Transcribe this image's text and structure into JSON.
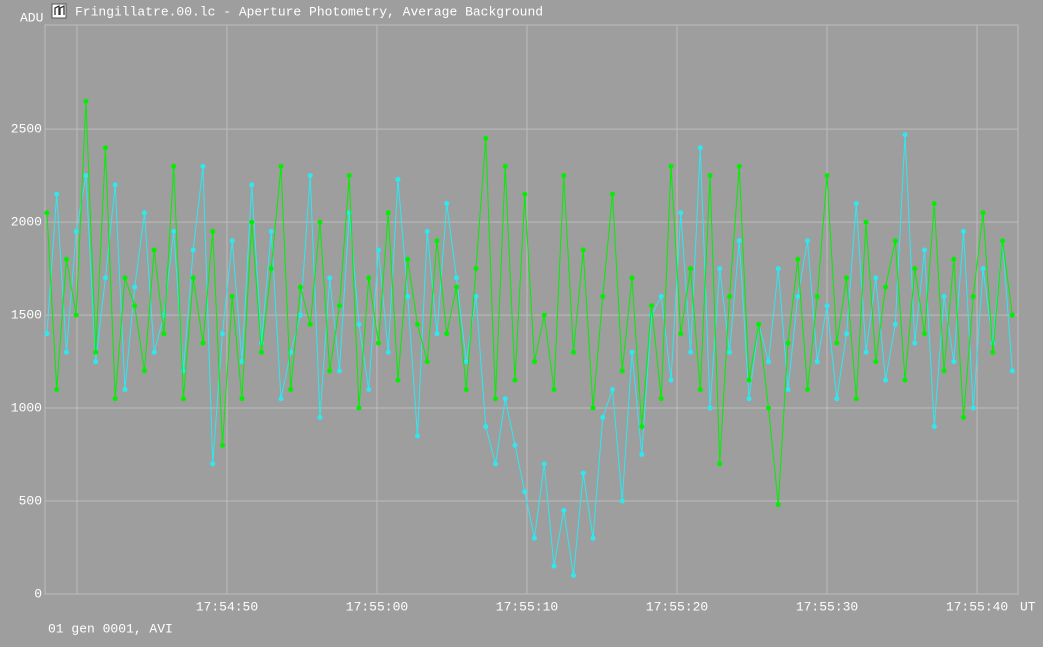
{
  "chart_data": {
    "type": "line",
    "title": "Fringillatre.00.lc - Aperture Photometry, Average Background",
    "y_label": "ADU",
    "x_label": "UT",
    "footer": "01 gen 0001, AVI",
    "x": [
      38.0,
      38.65,
      39.3,
      39.95,
      40.6,
      41.25,
      41.9,
      42.55,
      43.2,
      43.85,
      44.5,
      45.15,
      45.8,
      46.45,
      47.1,
      47.75,
      48.4,
      49.05,
      49.7,
      50.35,
      51.0,
      51.65,
      52.3,
      52.95,
      53.6,
      54.25,
      54.9,
      55.55,
      56.2,
      56.85,
      57.5,
      58.15,
      58.8,
      59.45,
      60.1,
      60.75,
      61.4,
      62.05,
      62.7,
      63.35,
      64.0,
      64.65,
      65.3,
      65.95,
      66.6,
      67.25,
      67.9,
      68.55,
      69.2,
      69.85,
      70.5,
      71.15,
      71.8,
      72.45,
      73.1,
      73.75,
      74.4,
      75.05,
      75.7,
      76.35,
      77.0,
      77.65,
      78.3,
      78.95,
      79.6,
      80.25,
      80.9,
      81.55,
      82.2,
      82.85,
      83.5,
      84.15,
      84.8,
      85.45,
      86.1,
      86.75,
      87.4,
      88.05,
      88.7,
      89.35,
      90.0,
      90.65,
      91.3,
      91.95,
      92.6,
      93.25,
      93.9,
      94.55,
      95.2,
      95.85,
      96.5,
      97.15,
      97.8,
      98.45,
      99.1,
      99.75,
      100.4,
      101.05,
      101.7,
      102.35
    ],
    "series": [
      {
        "color": "#2ee8f0",
        "values": [
          1400,
          2150,
          1300,
          1950,
          2250,
          1250,
          1700,
          2200,
          1100,
          1650,
          2050,
          1300,
          1500,
          1950,
          1200,
          1850,
          2300,
          700,
          1400,
          1900,
          1250,
          2200,
          1350,
          1950,
          1050,
          1300,
          1500,
          2250,
          950,
          1700,
          1200,
          2050,
          1450,
          1100,
          1850,
          1300,
          2230,
          1600,
          850,
          1950,
          1400,
          2100,
          1700,
          1250,
          1600,
          900,
          700,
          1050,
          800,
          550,
          300,
          700,
          150,
          450,
          100,
          650,
          300,
          950,
          1100,
          500,
          1300,
          750,
          1500,
          1600,
          1150,
          2050,
          1300,
          2400,
          1000,
          1750,
          1300,
          1900,
          1050,
          1450,
          1250,
          1750,
          1100,
          1600,
          1900,
          1250,
          1550,
          1050,
          1400,
          2100,
          1300,
          1700,
          1150,
          1450,
          2470,
          1350,
          1850,
          900,
          1600,
          1250,
          1950,
          1000,
          1750,
          1350,
          1900,
          1200
        ]
      },
      {
        "color": "#00f000",
        "values": [
          2050,
          1100,
          1800,
          1500,
          2650,
          1300,
          2400,
          1050,
          1700,
          1550,
          1200,
          1850,
          1400,
          2300,
          1050,
          1700,
          1350,
          1950,
          800,
          1600,
          1050,
          2000,
          1300,
          1750,
          2300,
          1100,
          1650,
          1450,
          2000,
          1200,
          1550,
          2250,
          1000,
          1700,
          1350,
          2050,
          1150,
          1800,
          1450,
          1250,
          1900,
          1400,
          1650,
          1100,
          1750,
          2450,
          1050,
          2300,
          1150,
          2150,
          1250,
          1500,
          1100,
          2250,
          1300,
          1850,
          1000,
          1600,
          2150,
          1200,
          1700,
          900,
          1550,
          1050,
          2300,
          1400,
          1750,
          1100,
          2250,
          700,
          1600,
          2300,
          1150,
          1450,
          1000,
          480,
          1350,
          1800,
          1100,
          1600,
          2250,
          1350,
          1700,
          1050,
          2000,
          1250,
          1650,
          1900,
          1150,
          1750,
          1400,
          2100,
          1200,
          1800,
          950,
          1600,
          2050,
          1300,
          1900,
          1500
        ]
      }
    ],
    "xlim": [
      37.87,
      102.73
    ],
    "ylim": [
      0,
      3060
    ],
    "xticks": [
      {
        "value": 40,
        "label": null
      },
      {
        "value": 50,
        "label": "17:54:50"
      },
      {
        "value": 60,
        "label": "17:55:00"
      },
      {
        "value": 70,
        "label": "17:55:10"
      },
      {
        "value": 80,
        "label": "17:55:20"
      },
      {
        "value": 90,
        "label": "17:55:30"
      },
      {
        "value": 100,
        "label": "17:55:40"
      }
    ],
    "yticks": [
      0,
      500,
      1000,
      1500,
      2000,
      2500
    ],
    "grid": true
  }
}
